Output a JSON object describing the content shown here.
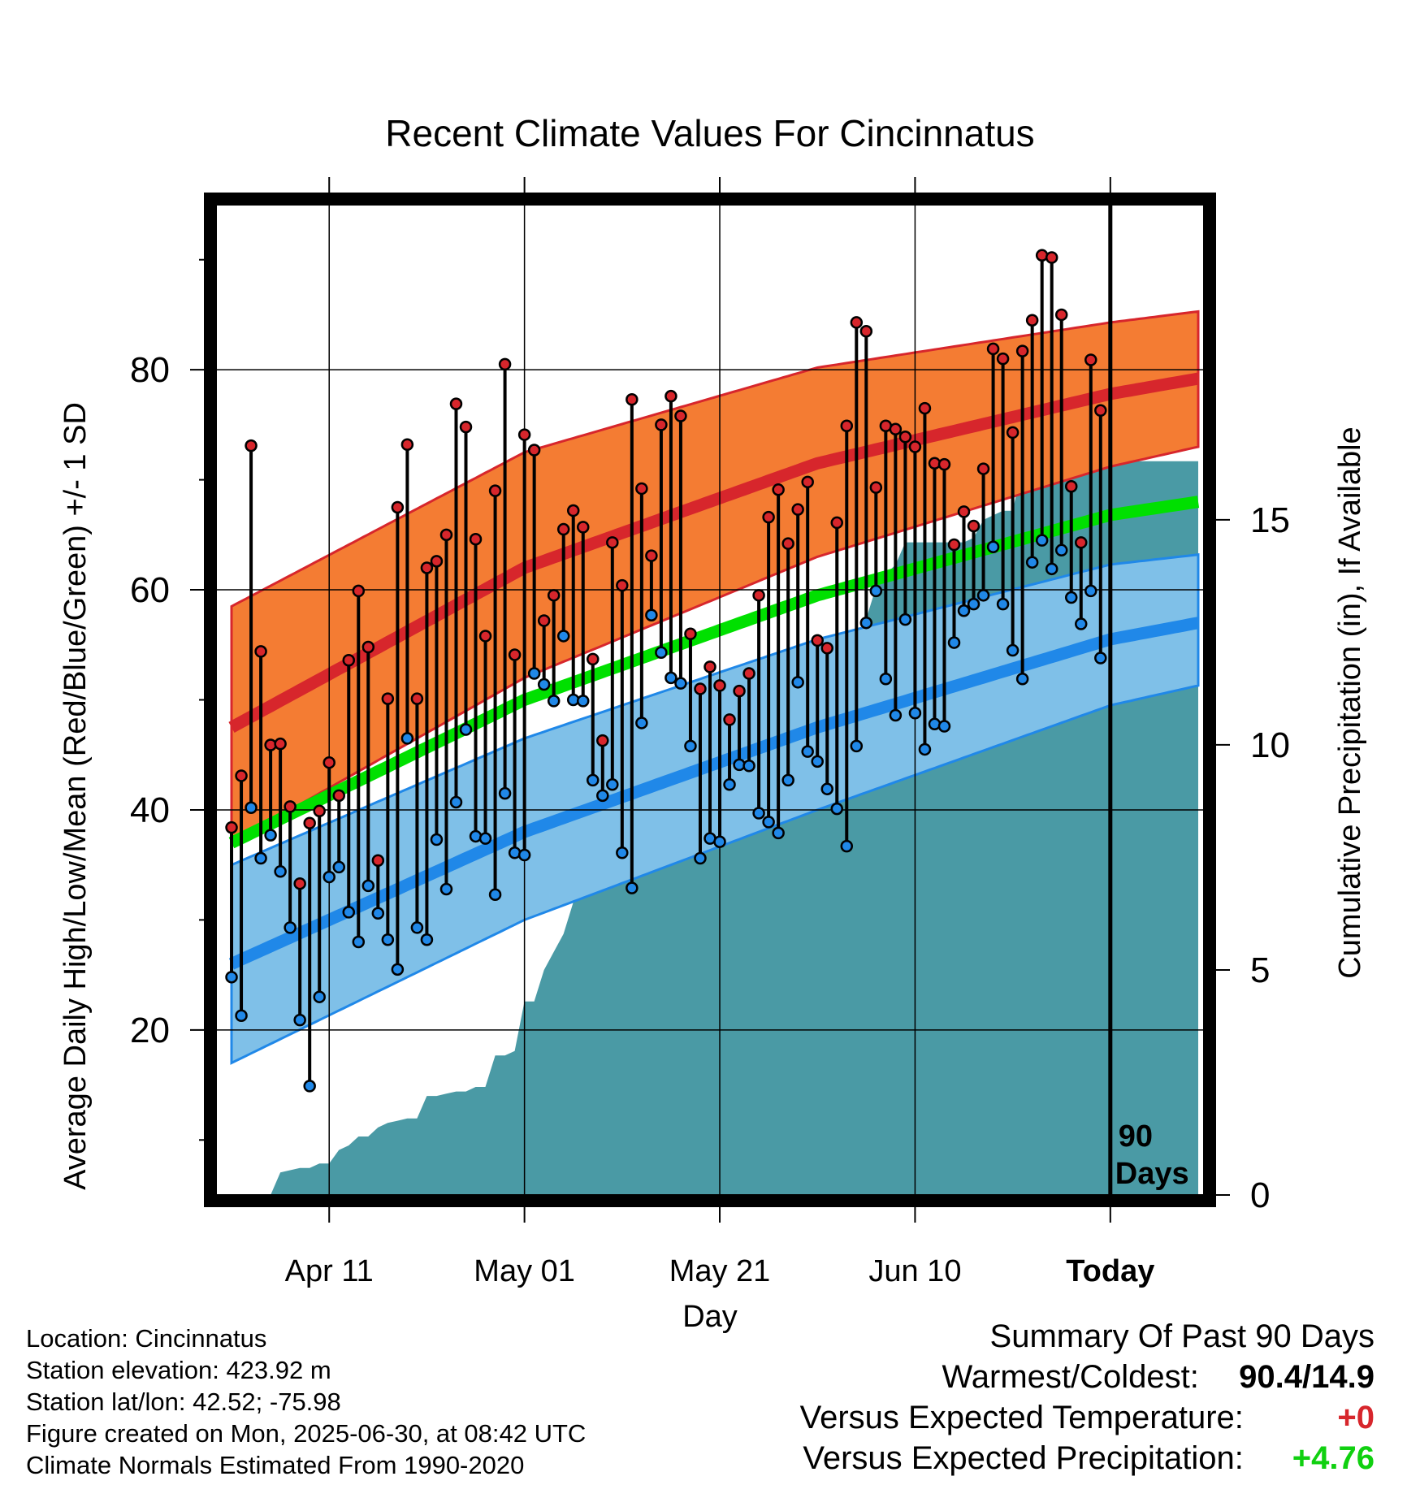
{
  "chart_data": {
    "type": "line",
    "title": "Recent Climate Values For Cincinnatus",
    "xlabel": "Day",
    "ylabel_left": "Average Daily High/Low/Mean (Red/Blue/Green) +/- 1 SD",
    "ylabel_right": "Cumulative Precipitation (in), If Available",
    "ylim_left": [
      5,
      95
    ],
    "yticks_left": [
      20,
      40,
      60,
      80
    ],
    "ylim_right": [
      0,
      22
    ],
    "yticks_right": [
      0,
      5,
      10,
      15
    ],
    "xlim_days": [
      -91.5,
      9.5
    ],
    "xticks": [
      {
        "day": -80,
        "label": "Apr 11"
      },
      {
        "day": -60,
        "label": "May 01"
      },
      {
        "day": -40,
        "label": "May 21"
      },
      {
        "day": -20,
        "label": "Jun 10"
      },
      {
        "day": 0,
        "label": "Today"
      }
    ],
    "today_marker_label": [
      "90",
      "Days"
    ],
    "grid": true,
    "colors": {
      "high_band": "#f47c33",
      "high_line": "#d7262c",
      "low_band": "#7fc0e8",
      "low_line": "#2088e8",
      "mean_line": "#00e000",
      "precip_fill": "#4a9aa5",
      "high_point": "#d7262c",
      "low_point": "#2088e8"
    },
    "normals": {
      "days": [
        -90,
        -60,
        -30,
        0,
        9
      ],
      "high_mean": [
        47.5,
        62.0,
        71.5,
        77.8,
        79.2
      ],
      "high_upper": [
        58.5,
        72.5,
        80.2,
        84.3,
        85.3
      ],
      "high_lower": [
        37.0,
        52.0,
        63.0,
        71.2,
        73.0
      ],
      "low_mean": [
        26.0,
        38.0,
        47.5,
        55.5,
        57.0
      ],
      "low_upper": [
        35.0,
        46.5,
        55.5,
        62.3,
        63.2
      ],
      "low_lower": [
        17.0,
        30.0,
        40.0,
        49.5,
        51.3
      ],
      "mean": [
        37.0,
        50.0,
        59.5,
        66.8,
        68.0
      ]
    },
    "series": [
      {
        "name": "Daily High",
        "values": [
          38.4,
          43.1,
          73.1,
          54.4,
          45.9,
          46.0,
          40.3,
          33.3,
          38.8,
          39.9,
          44.3,
          41.3,
          53.6,
          59.9,
          54.8,
          35.4,
          50.1,
          67.5,
          73.2,
          50.1,
          62.0,
          62.6,
          65.0,
          76.9,
          74.8,
          64.6,
          55.8,
          69.0,
          80.5,
          54.1,
          74.1,
          72.7,
          57.2,
          59.5,
          65.5,
          67.2,
          65.7,
          53.7,
          46.3,
          64.3,
          60.4,
          77.3,
          69.2,
          63.1,
          75.0,
          77.6,
          75.8,
          56.0,
          51.0,
          53.0,
          51.3,
          48.2,
          50.8,
          52.4,
          59.5,
          66.6,
          69.1,
          64.2,
          67.3,
          69.8,
          55.4,
          54.7,
          66.1,
          74.9,
          84.3,
          83.5,
          69.3,
          74.9,
          74.6,
          73.9,
          73.0,
          76.5,
          71.5,
          71.4,
          64.1,
          67.1,
          65.8,
          71.0,
          81.9,
          81.0,
          74.3,
          81.7,
          84.5,
          90.4,
          90.2,
          85.0,
          69.4,
          64.3,
          80.9,
          76.3
        ]
      },
      {
        "name": "Daily Low",
        "values": [
          24.8,
          21.3,
          40.2,
          35.6,
          37.7,
          34.4,
          29.3,
          20.9,
          14.9,
          23.0,
          33.9,
          34.8,
          30.7,
          28.0,
          33.1,
          30.6,
          28.2,
          25.5,
          46.5,
          29.3,
          28.2,
          37.3,
          32.8,
          40.7,
          47.3,
          37.6,
          37.4,
          32.3,
          41.5,
          36.1,
          35.9,
          52.4,
          51.4,
          49.9,
          55.8,
          50.0,
          49.9,
          42.7,
          41.3,
          42.3,
          36.1,
          32.9,
          47.9,
          57.7,
          54.3,
          52.0,
          51.5,
          45.8,
          35.6,
          37.4,
          37.1,
          42.3,
          44.1,
          44.0,
          39.7,
          38.9,
          37.9,
          42.7,
          51.6,
          45.3,
          44.4,
          41.9,
          40.1,
          36.7,
          45.8,
          57.0,
          59.9,
          51.9,
          48.6,
          57.3,
          48.8,
          45.5,
          47.8,
          47.6,
          55.2,
          58.1,
          58.7,
          59.5,
          63.9,
          58.7,
          54.5,
          51.9,
          62.5,
          64.5,
          61.9,
          63.6,
          59.3,
          56.9,
          59.9,
          53.8
        ]
      }
    ],
    "precip": {
      "days": [
        -89,
        -88,
        -87,
        -86,
        -85,
        -84,
        -83,
        -82,
        -81,
        -80,
        -79,
        -78,
        -77,
        -76,
        -75,
        -74,
        -73,
        -72,
        -71,
        -70,
        -69,
        -68,
        -67,
        -66,
        -65,
        -64,
        -63,
        -62,
        -61,
        -60,
        -59,
        -58,
        -57,
        -56,
        -55,
        -54,
        -53,
        -52,
        -51,
        -50,
        -49,
        -48,
        -47,
        -46,
        -45,
        -44,
        -43,
        -42,
        -41,
        -40,
        -39,
        -38,
        -37,
        -36,
        -35,
        -34,
        -33,
        -32,
        -31,
        -30,
        -29,
        -28,
        -27,
        -26,
        -25,
        -24,
        -23,
        -22,
        -21,
        -20,
        -19,
        -18,
        -17,
        -16,
        -15,
        -14,
        -13,
        -12,
        -11,
        -10,
        -9,
        -8,
        -7,
        -6,
        -5,
        -4,
        -3,
        -2,
        -1,
        0,
        9
      ],
      "values": [
        0.0,
        0.0,
        0.0,
        0.0,
        0.5,
        0.55,
        0.6,
        0.6,
        0.7,
        0.7,
        1.0,
        1.1,
        1.3,
        1.3,
        1.5,
        1.6,
        1.65,
        1.7,
        1.7,
        2.2,
        2.2,
        2.25,
        2.3,
        2.3,
        2.4,
        2.4,
        3.1,
        3.1,
        3.2,
        4.3,
        4.3,
        5.0,
        5.4,
        5.8,
        6.5,
        8.4,
        8.6,
        8.7,
        9.0,
        9.0,
        9.0,
        9.1,
        9.2,
        9.5,
        9.5,
        10.1,
        10.15,
        10.2,
        10.3,
        10.8,
        11.1,
        11.2,
        11.3,
        11.3,
        11.3,
        11.4,
        11.5,
        11.6,
        11.7,
        11.8,
        11.8,
        11.9,
        12.0,
        12.1,
        12.8,
        13.5,
        13.8,
        14.0,
        14.5,
        14.5,
        14.5,
        14.5,
        14.5,
        14.5,
        14.5,
        14.6,
        15.0,
        15.1,
        15.2,
        15.2,
        16.2,
        16.2,
        16.2,
        16.25,
        16.3,
        16.3,
        16.3,
        16.3,
        16.3,
        16.3,
        16.3
      ]
    }
  },
  "footer": {
    "location": "Location: Cincinnatus",
    "elevation": "Station elevation: 423.92 m",
    "latlon": "Station lat/lon: 42.52; -75.98",
    "created": "Figure created on Mon, 2025-06-30, at 08:42 UTC",
    "normals": "Climate Normals Estimated From 1990-2020"
  },
  "summary": {
    "heading": "Summary Of Past 90 Days",
    "warmest_label": "Warmest/Coldest:",
    "warmest_value": "90.4/14.9",
    "temp_label": "Versus Expected Temperature:",
    "temp_value": "+0",
    "temp_color": "#d7262c",
    "precip_label": "Versus Expected Precipitation:",
    "precip_value": "+4.76",
    "precip_color": "#10d010"
  }
}
